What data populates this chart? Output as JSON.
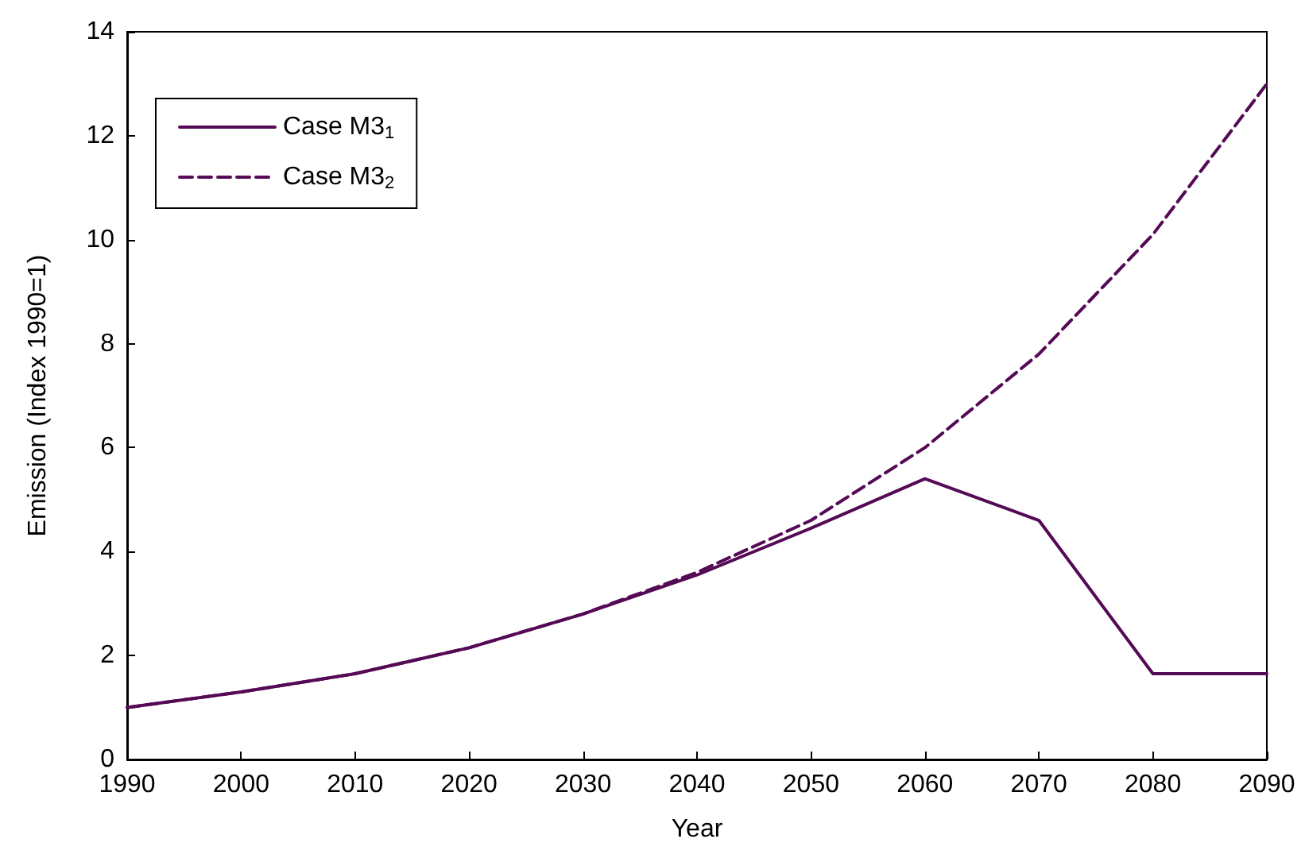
{
  "chart_data": {
    "type": "line",
    "xlabel": "Year",
    "ylabel": "Emission (Index 1990=1)",
    "x": [
      1990,
      2000,
      2010,
      2020,
      2030,
      2040,
      2050,
      2060,
      2070,
      2080,
      2090
    ],
    "xlim": [
      1990,
      2090
    ],
    "xticks": [
      1990,
      2000,
      2010,
      2020,
      2030,
      2040,
      2050,
      2060,
      2070,
      2080,
      2090
    ],
    "ylim": [
      0,
      14
    ],
    "yticks": [
      0,
      2,
      4,
      6,
      8,
      10,
      12,
      14
    ],
    "grid": false,
    "legend": "top left",
    "marker": "none",
    "series": [
      {
        "name": "Case M3$_{1}$",
        "color": "#550a55",
        "line_style": "solid",
        "values": [
          1.0,
          1.3,
          1.65,
          2.15,
          2.8,
          3.55,
          4.45,
          5.4,
          4.6,
          1.65,
          1.65
        ]
      },
      {
        "name": "Case M3$_{2}$",
        "color": "#550a55",
        "line_style": "dashed",
        "values": [
          1.0,
          1.3,
          1.65,
          2.15,
          2.8,
          3.6,
          4.6,
          6.0,
          7.8,
          10.1,
          13.0
        ]
      }
    ]
  }
}
